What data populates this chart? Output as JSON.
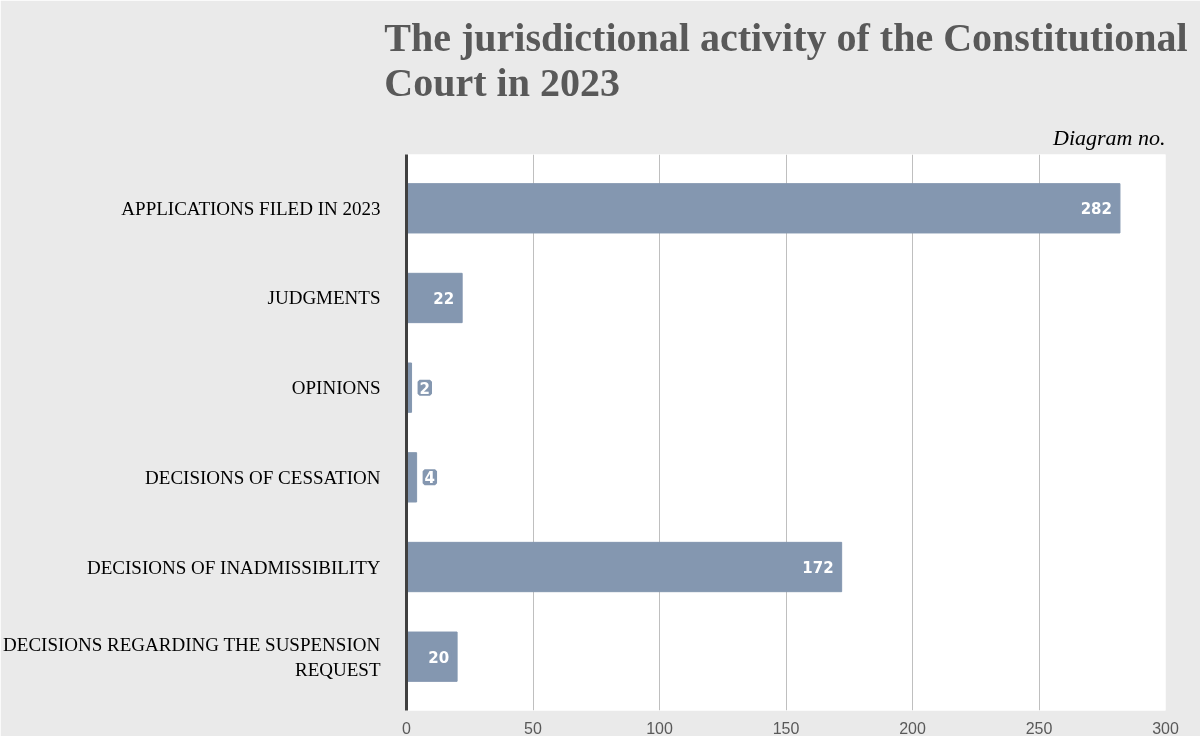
{
  "chart_data": {
    "type": "bar",
    "orientation": "horizontal",
    "title": "The jurisdictional activity of the Constitutional\nCourt in 2023",
    "annotations": [
      "Diagram no."
    ],
    "categories": [
      "APPLICATIONS FILED IN 2023",
      "JUDGMENTS",
      "OPINIONS",
      "DECISIONS OF CESSATION",
      "DECISIONS OF INADMISSIBILITY",
      "DECISIONS REGARDING THE SUSPENSION\nREQUEST"
    ],
    "values": [
      282,
      22,
      2,
      4,
      172,
      20
    ],
    "color": "#8497b0",
    "xlim": [
      0,
      300
    ],
    "xticks": [
      0,
      50,
      100,
      150,
      200,
      250,
      300
    ],
    "grid": "x",
    "data_labels": true
  }
}
